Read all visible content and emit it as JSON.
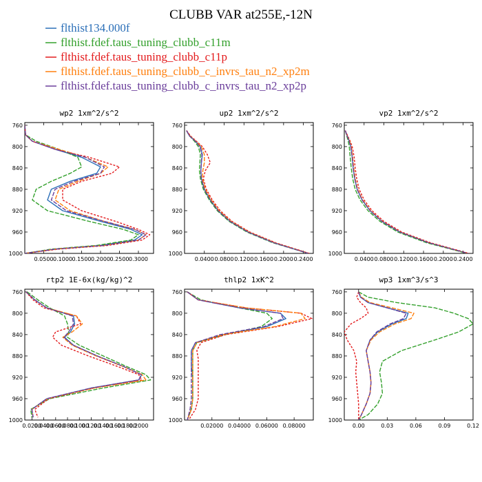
{
  "title": "CLUBB VAR at255E,-12N",
  "colors": {
    "flthist134.000f": "#2b6fb8",
    "flthist.fdef.taus_tuning_clubb_c11m": "#33a02c",
    "flthist.fdef.taus_tuning_clubb_c11p": "#e31a1c",
    "flthist.fdef.taus_tuning_clubb_c_invrs_tau_n2_xp2m": "#ff7f0e",
    "flthist.fdef.taus_tuning_clubb_c_invrs_tau_n2_xp2p": "#6a3d9a"
  },
  "legend": [
    {
      "label": "flthist134.000f",
      "color": "#2b6fb8"
    },
    {
      "label": "flthist.fdef.taus_tuning_clubb_c11m",
      "color": "#33a02c"
    },
    {
      "label": "flthist.fdef.taus_tuning_clubb_c11p",
      "color": "#e31a1c"
    },
    {
      "label": "flthist.fdef.taus_tuning_clubb_c_invrs_tau_n2_xp2m",
      "color": "#ff7f0e"
    },
    {
      "label": "flthist.fdef.taus_tuning_clubb_c_invrs_tau_n2_xp2p",
      "color": "#6a3d9a"
    }
  ],
  "chart_data": [
    {
      "type": "line",
      "title": "wp2  1xm^2/s^2",
      "xlim": [
        0.0,
        0.34
      ],
      "ylim": [
        1000,
        755
      ],
      "xticks": [
        0.05,
        0.1,
        0.15,
        0.2,
        0.25,
        0.3
      ],
      "xtick_labels": [
        "0.0500",
        "0.1000",
        "0.1500",
        "0.2000",
        "0.2500",
        "0.3000"
      ],
      "yticks": [
        760,
        800,
        840,
        880,
        920,
        960,
        1000
      ],
      "y": [
        760,
        778,
        790,
        805,
        820,
        838,
        850,
        865,
        880,
        900,
        920,
        940,
        955,
        965,
        975,
        985,
        992,
        1000
      ],
      "series": [
        {
          "name": "flthist134.000f",
          "x": [
            0.0,
            0.002,
            0.02,
            0.08,
            0.15,
            0.2,
            0.19,
            0.12,
            0.07,
            0.06,
            0.1,
            0.2,
            0.28,
            0.31,
            0.29,
            0.2,
            0.08,
            0.0
          ]
        },
        {
          "name": "flthist.fdef.taus_tuning_clubb_c11m",
          "x": [
            0.0,
            0.002,
            0.03,
            0.09,
            0.14,
            0.15,
            0.12,
            0.07,
            0.03,
            0.02,
            0.06,
            0.17,
            0.26,
            0.3,
            0.28,
            0.19,
            0.07,
            0.0
          ]
        },
        {
          "name": "flthist.fdef.taus_tuning_clubb_c11p",
          "x": [
            0.0,
            0.002,
            0.02,
            0.08,
            0.17,
            0.25,
            0.23,
            0.15,
            0.1,
            0.1,
            0.15,
            0.24,
            0.3,
            0.33,
            0.31,
            0.22,
            0.09,
            0.0
          ]
        },
        {
          "name": "flthist.fdef.taus_tuning_clubb_c_invrs_tau_n2_xp2m",
          "x": [
            0.0,
            0.002,
            0.02,
            0.09,
            0.16,
            0.22,
            0.2,
            0.14,
            0.09,
            0.08,
            0.12,
            0.21,
            0.29,
            0.32,
            0.3,
            0.21,
            0.08,
            0.0
          ]
        },
        {
          "name": "flthist.fdef.taus_tuning_clubb_c_invrs_tau_n2_xp2p",
          "x": [
            0.0,
            0.002,
            0.02,
            0.08,
            0.16,
            0.21,
            0.2,
            0.13,
            0.08,
            0.07,
            0.11,
            0.21,
            0.29,
            0.32,
            0.3,
            0.21,
            0.08,
            0.0
          ]
        }
      ]
    },
    {
      "type": "line",
      "title": "up2  1xm^2/s^2",
      "xlim": [
        0.0,
        0.26
      ],
      "ylim": [
        1000,
        755
      ],
      "xticks": [
        0.04,
        0.08,
        0.12,
        0.16,
        0.2,
        0.24
      ],
      "xtick_labels": [
        "0.0400",
        "0.0800",
        "0.1200",
        "0.1600",
        "0.2000",
        "0.2400"
      ],
      "yticks": [
        760,
        800,
        840,
        880,
        920,
        960,
        1000
      ],
      "y": [
        770,
        780,
        790,
        800,
        815,
        830,
        845,
        860,
        880,
        900,
        920,
        940,
        960,
        980,
        1000
      ],
      "series": [
        {
          "name": "flthist134.000f",
          "x": [
            0.004,
            0.01,
            0.022,
            0.032,
            0.036,
            0.034,
            0.033,
            0.034,
            0.04,
            0.052,
            0.068,
            0.092,
            0.128,
            0.18,
            0.25
          ]
        },
        {
          "name": "flthist.fdef.taus_tuning_clubb_c11m",
          "x": [
            0.004,
            0.01,
            0.02,
            0.028,
            0.032,
            0.031,
            0.03,
            0.032,
            0.038,
            0.05,
            0.066,
            0.09,
            0.126,
            0.178,
            0.25
          ]
        },
        {
          "name": "flthist.fdef.taus_tuning_clubb_c11p",
          "x": [
            0.004,
            0.012,
            0.024,
            0.036,
            0.046,
            0.052,
            0.042,
            0.038,
            0.044,
            0.056,
            0.072,
            0.096,
            0.132,
            0.184,
            0.252
          ]
        },
        {
          "name": "flthist.fdef.taus_tuning_clubb_c_invrs_tau_n2_xp2m",
          "x": [
            0.004,
            0.011,
            0.023,
            0.034,
            0.04,
            0.04,
            0.037,
            0.036,
            0.042,
            0.054,
            0.07,
            0.094,
            0.13,
            0.182,
            0.251
          ]
        },
        {
          "name": "flthist.fdef.taus_tuning_clubb_c_invrs_tau_n2_xp2p",
          "x": [
            0.004,
            0.01,
            0.022,
            0.031,
            0.035,
            0.034,
            0.033,
            0.034,
            0.04,
            0.052,
            0.068,
            0.092,
            0.128,
            0.18,
            0.25
          ]
        }
      ]
    },
    {
      "type": "line",
      "title": "vp2  1xm^2/s^2",
      "xlim": [
        0.0,
        0.26
      ],
      "ylim": [
        1000,
        755
      ],
      "xticks": [
        0.04,
        0.08,
        0.12,
        0.16,
        0.2,
        0.24
      ],
      "xtick_labels": [
        "0.0400",
        "0.0800",
        "0.1200",
        "0.1600",
        "0.2000",
        "0.2400"
      ],
      "yticks": [
        760,
        800,
        840,
        880,
        920,
        960,
        1000
      ],
      "y": [
        770,
        780,
        790,
        800,
        820,
        840,
        860,
        880,
        900,
        920,
        940,
        960,
        980,
        1000
      ],
      "series": [
        {
          "name": "flthist134.000f",
          "x": [
            0.002,
            0.006,
            0.01,
            0.013,
            0.016,
            0.018,
            0.021,
            0.026,
            0.036,
            0.052,
            0.076,
            0.112,
            0.17,
            0.25
          ]
        },
        {
          "name": "flthist.fdef.taus_tuning_clubb_c11m",
          "x": [
            0.002,
            0.005,
            0.008,
            0.01,
            0.012,
            0.014,
            0.017,
            0.022,
            0.032,
            0.048,
            0.072,
            0.108,
            0.166,
            0.248
          ]
        },
        {
          "name": "flthist.fdef.taus_tuning_clubb_c11p",
          "x": [
            0.002,
            0.007,
            0.012,
            0.016,
            0.02,
            0.022,
            0.025,
            0.03,
            0.04,
            0.056,
            0.08,
            0.116,
            0.174,
            0.252
          ]
        },
        {
          "name": "flthist.fdef.taus_tuning_clubb_c_invrs_tau_n2_xp2m",
          "x": [
            0.002,
            0.006,
            0.011,
            0.014,
            0.017,
            0.019,
            0.022,
            0.027,
            0.037,
            0.053,
            0.077,
            0.113,
            0.171,
            0.25
          ]
        },
        {
          "name": "flthist.fdef.taus_tuning_clubb_c_invrs_tau_n2_xp2p",
          "x": [
            0.002,
            0.006,
            0.01,
            0.013,
            0.016,
            0.018,
            0.021,
            0.026,
            0.036,
            0.052,
            0.076,
            0.112,
            0.17,
            0.25
          ]
        }
      ]
    },
    {
      "type": "line",
      "title": "rtp2  1E-6x(kg/kg)^2",
      "xlim": [
        0.008,
        0.225
      ],
      "ylim": [
        1000,
        755
      ],
      "xticks": [
        0.02,
        0.04,
        0.06,
        0.08,
        0.1,
        0.12,
        0.14,
        0.16,
        0.18,
        0.2
      ],
      "xtick_labels": [
        "0.0200",
        "0.0400",
        "0.0600",
        "0.0800",
        "0.1000",
        "0.1200",
        "0.1400",
        "0.1600",
        "0.1800",
        "0.2000"
      ],
      "yticks": [
        760,
        800,
        840,
        880,
        920,
        960,
        1000
      ],
      "y": [
        760,
        775,
        790,
        805,
        820,
        835,
        845,
        860,
        880,
        900,
        915,
        925,
        940,
        960,
        980,
        995
      ],
      "series": [
        {
          "name": "flthist134.000f",
          "x": [
            0.01,
            0.025,
            0.045,
            0.09,
            0.092,
            0.085,
            0.075,
            0.09,
            0.13,
            0.175,
            0.205,
            0.2,
            0.12,
            0.045,
            0.02,
            0.022
          ]
        },
        {
          "name": "flthist.fdef.taus_tuning_clubb_c11m",
          "x": [
            0.012,
            0.03,
            0.05,
            0.075,
            0.08,
            0.082,
            0.08,
            0.1,
            0.14,
            0.18,
            0.212,
            0.22,
            0.14,
            0.05,
            0.018,
            0.02
          ]
        },
        {
          "name": "flthist.fdef.taus_tuning_clubb_c11p",
          "x": [
            0.01,
            0.022,
            0.04,
            0.095,
            0.102,
            0.06,
            0.055,
            0.07,
            0.115,
            0.165,
            0.2,
            0.205,
            0.125,
            0.048,
            0.025,
            0.03
          ]
        },
        {
          "name": "flthist.fdef.taus_tuning_clubb_c_invrs_tau_n2_xp2m",
          "x": [
            0.01,
            0.025,
            0.045,
            0.095,
            0.105,
            0.088,
            0.072,
            0.088,
            0.128,
            0.174,
            0.206,
            0.212,
            0.125,
            0.046,
            0.02,
            0.022
          ]
        },
        {
          "name": "flthist.fdef.taus_tuning_clubb_c_invrs_tau_n2_xp2p",
          "x": [
            0.01,
            0.025,
            0.045,
            0.088,
            0.09,
            0.082,
            0.074,
            0.09,
            0.13,
            0.175,
            0.204,
            0.2,
            0.12,
            0.045,
            0.02,
            0.022
          ]
        }
      ]
    },
    {
      "type": "line",
      "title": "thlp2  1xK^2",
      "xlim": [
        0.0,
        0.094
      ],
      "ylim": [
        1000,
        755
      ],
      "xticks": [
        0.02,
        0.04,
        0.06,
        0.08
      ],
      "xtick_labels": [
        "0.02000",
        "0.04000",
        "0.06000",
        "0.08000"
      ],
      "yticks": [
        760,
        800,
        840,
        880,
        920,
        960,
        1000
      ],
      "y": [
        760,
        775,
        790,
        800,
        810,
        825,
        840,
        855,
        870,
        885,
        900,
        920,
        940,
        960,
        980,
        1000
      ],
      "series": [
        {
          "name": "flthist134.000f",
          "x": [
            0.002,
            0.01,
            0.04,
            0.07,
            0.074,
            0.06,
            0.028,
            0.008,
            0.005,
            0.005,
            0.005,
            0.006,
            0.006,
            0.006,
            0.005,
            0.002
          ]
        },
        {
          "name": "flthist.fdef.taus_tuning_clubb_c11m",
          "x": [
            0.002,
            0.012,
            0.04,
            0.06,
            0.064,
            0.056,
            0.03,
            0.009,
            0.006,
            0.006,
            0.006,
            0.006,
            0.006,
            0.006,
            0.005,
            0.002
          ]
        },
        {
          "name": "flthist.fdef.taus_tuning_clubb_c11p",
          "x": [
            0.002,
            0.01,
            0.045,
            0.085,
            0.093,
            0.068,
            0.03,
            0.012,
            0.009,
            0.01,
            0.01,
            0.01,
            0.01,
            0.01,
            0.008,
            0.003
          ]
        },
        {
          "name": "flthist.fdef.taus_tuning_clubb_c_invrs_tau_n2_xp2m",
          "x": [
            0.002,
            0.01,
            0.045,
            0.085,
            0.088,
            0.066,
            0.028,
            0.009,
            0.006,
            0.006,
            0.006,
            0.006,
            0.006,
            0.006,
            0.005,
            0.002
          ]
        },
        {
          "name": "flthist.fdef.taus_tuning_clubb_c_invrs_tau_n2_xp2p",
          "x": [
            0.002,
            0.01,
            0.04,
            0.07,
            0.072,
            0.058,
            0.026,
            0.008,
            0.005,
            0.005,
            0.005,
            0.005,
            0.005,
            0.005,
            0.004,
            0.002
          ]
        }
      ]
    },
    {
      "type": "line",
      "title": "wp3  1xm^3/s^3",
      "xlim": [
        -0.015,
        0.12
      ],
      "ylim": [
        1000,
        755
      ],
      "xticks": [
        0.0,
        0.03,
        0.06,
        0.09,
        0.12
      ],
      "xtick_labels": [
        "0.00",
        "0.03",
        "0.06",
        "0.09",
        "0.12"
      ],
      "yticks": [
        760,
        800,
        840,
        880,
        920,
        960,
        1000
      ],
      "y": [
        760,
        770,
        780,
        790,
        800,
        810,
        820,
        835,
        850,
        870,
        890,
        910,
        930,
        950,
        970,
        990,
        1000
      ],
      "series": [
        {
          "name": "flthist134.000f",
          "x": [
            0.0,
            0.002,
            0.01,
            0.03,
            0.052,
            0.05,
            0.035,
            0.02,
            0.012,
            0.008,
            0.01,
            0.012,
            0.013,
            0.012,
            0.008,
            0.003,
            0.0
          ]
        },
        {
          "name": "flthist.fdef.taus_tuning_clubb_c11m",
          "x": [
            0.0,
            0.01,
            0.04,
            0.08,
            0.1,
            0.115,
            0.12,
            0.105,
            0.08,
            0.045,
            0.025,
            0.022,
            0.024,
            0.025,
            0.02,
            0.01,
            0.0
          ]
        },
        {
          "name": "flthist.fdef.taus_tuning_clubb_c11p",
          "x": [
            0.0,
            -0.002,
            0.002,
            0.008,
            0.01,
            0.002,
            -0.008,
            -0.015,
            -0.012,
            -0.005,
            -0.002,
            -0.003,
            -0.002,
            -0.001,
            0.0,
            0.0,
            0.0
          ]
        },
        {
          "name": "flthist.fdef.taus_tuning_clubb_c_invrs_tau_n2_xp2m",
          "x": [
            0.0,
            0.003,
            0.012,
            0.035,
            0.058,
            0.055,
            0.038,
            0.022,
            0.013,
            0.008,
            0.01,
            0.012,
            0.013,
            0.012,
            0.008,
            0.003,
            0.0
          ]
        },
        {
          "name": "flthist.fdef.taus_tuning_clubb_c_invrs_tau_n2_xp2p",
          "x": [
            0.0,
            0.002,
            0.01,
            0.03,
            0.05,
            0.047,
            0.033,
            0.019,
            0.012,
            0.008,
            0.01,
            0.012,
            0.013,
            0.012,
            0.008,
            0.003,
            0.0
          ]
        }
      ]
    }
  ]
}
